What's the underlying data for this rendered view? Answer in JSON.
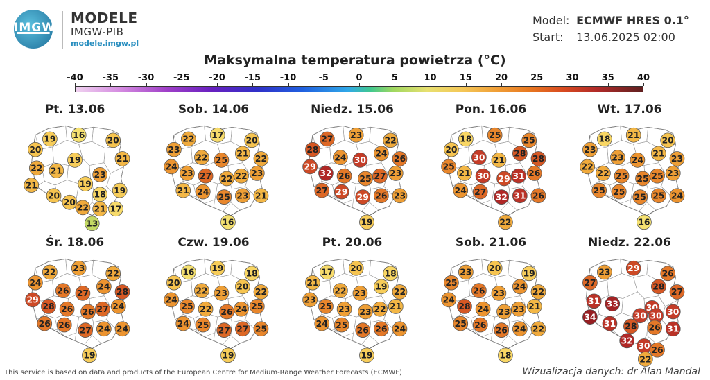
{
  "header": {
    "logo_text": "IMGW",
    "org_title": "MODELE",
    "org_subtitle": "IMGW-PIB",
    "org_url": "modele.imgw.pl",
    "model_label": "Model:",
    "model_value": "ECMWF HRES 0.1°",
    "start_label": "Start:",
    "start_value": "13.06.2025 02:00"
  },
  "title": "Maksymalna temperatura powietrza (°C)",
  "legend": {
    "labels": [
      "-40",
      "-35",
      "-30",
      "-25",
      "-20",
      "-15",
      "-10",
      "-5",
      "0",
      "5",
      "10",
      "15",
      "20",
      "25",
      "30",
      "35",
      "40"
    ],
    "min": -40,
    "max": 40
  },
  "panels": [
    {
      "title": "Pt. 13.06",
      "values": [
        19,
        16,
        20,
        20,
        21,
        19,
        22,
        21,
        23,
        21,
        19,
        18,
        19,
        20,
        20,
        22,
        21,
        17,
        13
      ]
    },
    {
      "title": "Sob. 14.06",
      "values": [
        22,
        17,
        20,
        23,
        21,
        22,
        22,
        25,
        24,
        22,
        23,
        27,
        22,
        23,
        21,
        24,
        25,
        23,
        21,
        16
      ]
    },
    {
      "title": "Niedz. 15.06",
      "values": [
        27,
        23,
        22,
        28,
        24,
        26,
        24,
        30,
        29,
        27,
        32,
        26,
        25,
        23,
        27,
        29,
        29,
        26,
        23,
        19
      ]
    },
    {
      "title": "Pon. 16.06",
      "values": [
        18,
        25,
        25,
        20,
        28,
        28,
        30,
        21,
        25,
        31,
        21,
        30,
        29,
        26,
        24,
        27,
        32,
        31,
        26,
        22
      ]
    },
    {
      "title": "Wt. 17.06",
      "values": [
        18,
        21,
        20,
        23,
        21,
        23,
        23,
        24,
        22,
        25,
        22,
        25,
        25,
        23,
        25,
        25,
        25,
        25,
        24,
        16
      ]
    },
    {
      "title": "Śr. 18.06",
      "values": [
        22,
        23,
        22,
        24,
        24,
        28,
        26,
        27,
        29,
        27,
        28,
        26,
        26,
        24,
        26,
        26,
        27,
        24,
        24,
        19
      ]
    },
    {
      "title": "Czw. 19.06",
      "values": [
        16,
        19,
        18,
        20,
        20,
        22,
        22,
        23,
        24,
        24,
        25,
        22,
        26,
        25,
        24,
        25,
        27,
        27,
        25,
        19
      ]
    },
    {
      "title": "Pt. 20.06",
      "values": [
        17,
        20,
        18,
        21,
        19,
        22,
        22,
        23,
        23,
        22,
        25,
        23,
        23,
        21,
        24,
        25,
        26,
        26,
        24,
        19
      ]
    },
    {
      "title": "Sob. 21.06",
      "values": [
        23,
        20,
        19,
        25,
        24,
        22,
        26,
        23,
        24,
        23,
        28,
        24,
        23,
        21,
        25,
        26,
        26,
        24,
        22,
        18
      ]
    },
    {
      "title": "Niedz. 22.06",
      "values": [
        23,
        29,
        26,
        27,
        28,
        27,
        31,
        33,
        30,
        30,
        34,
        30,
        30,
        31,
        28,
        26,
        31,
        32,
        30,
        26,
        22
      ]
    }
  ],
  "footer": {
    "left": "This service is based on data and products of the European Centre for Medium-Range Weather Forecasts (ECMWF)",
    "right": "Wizualizacja danych: dr Alan Mandal"
  }
}
